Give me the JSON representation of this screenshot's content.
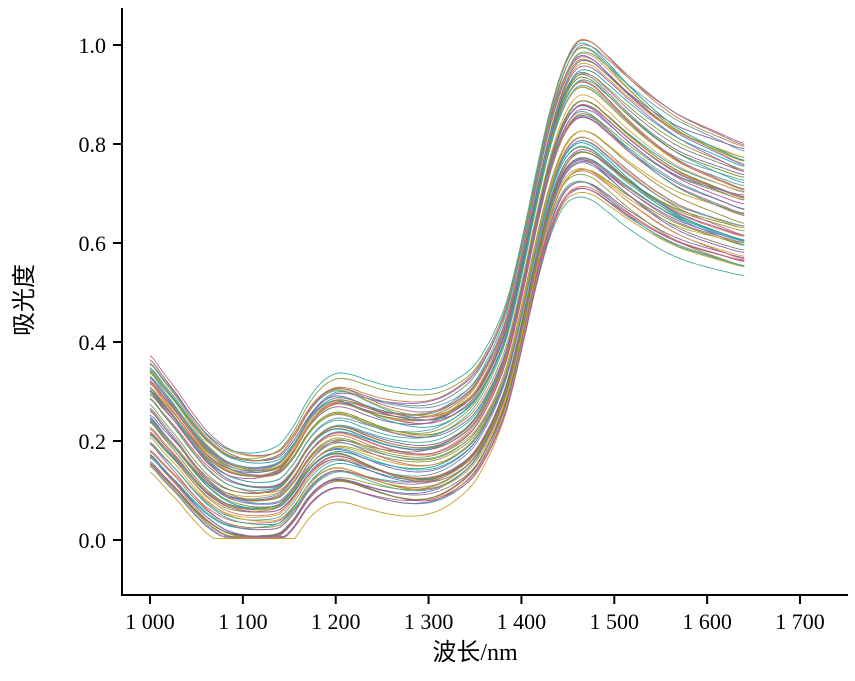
{
  "chart_data": {
    "type": "line",
    "title": "",
    "xlabel": "波长/nm",
    "ylabel": "吸光度",
    "grid": false,
    "legend": "none",
    "x_ticks": [
      1000,
      1100,
      1200,
      1300,
      1400,
      1500,
      1600,
      1700
    ],
    "x_tick_labels": [
      "1 000",
      "1 100",
      "1 200",
      "1 300",
      "1 400",
      "1 500",
      "1 600",
      "1 700"
    ],
    "y_ticks": [
      0.0,
      0.2,
      0.4,
      0.6,
      0.8,
      1.0
    ],
    "y_tick_labels": [
      "0.0",
      "0.2",
      "0.4",
      "0.6",
      "0.8",
      "1.0"
    ],
    "x_data_range_nm": [
      1000,
      1640
    ],
    "ylim_data": [
      0.0,
      1.005
    ],
    "n_series": 72,
    "description": "Bundle of near-infrared absorbance spectra; band minimum near 1080-1140 nm (0.0-0.19), local maximum near 1200 nm (0.10-0.32), shallow dip near 1280 nm, steep rise 1380-1440 nm, global peak near 1455-1465 nm (0.70-1.00), decaying to 0.53-0.79 at 1640 nm",
    "anchors_x": [
      1000,
      1015,
      1030,
      1045,
      1060,
      1080,
      1100,
      1120,
      1140,
      1155,
      1170,
      1185,
      1200,
      1215,
      1230,
      1250,
      1270,
      1290,
      1310,
      1330,
      1350,
      1370,
      1385,
      1400,
      1415,
      1430,
      1445,
      1460,
      1475,
      1490,
      1510,
      1530,
      1550,
      1570,
      1590,
      1610,
      1640
    ],
    "mean_y": [
      0.26,
      0.228,
      0.196,
      0.16,
      0.128,
      0.1,
      0.088,
      0.086,
      0.094,
      0.125,
      0.17,
      0.2,
      0.213,
      0.21,
      0.2,
      0.188,
      0.18,
      0.177,
      0.183,
      0.202,
      0.235,
      0.3,
      0.375,
      0.49,
      0.62,
      0.735,
      0.815,
      0.852,
      0.85,
      0.828,
      0.795,
      0.765,
      0.738,
      0.716,
      0.7,
      0.686,
      0.668
    ],
    "spread_y": [
      0.11,
      0.106,
      0.102,
      0.098,
      0.094,
      0.09,
      0.088,
      0.088,
      0.092,
      0.096,
      0.1,
      0.104,
      0.106,
      0.106,
      0.105,
      0.104,
      0.104,
      0.103,
      0.102,
      0.101,
      0.1,
      0.099,
      0.098,
      0.1,
      0.106,
      0.118,
      0.132,
      0.148,
      0.15,
      0.147,
      0.143,
      0.138,
      0.134,
      0.13,
      0.127,
      0.124,
      0.12
    ],
    "palette": [
      "#c8a227",
      "#4aa8a0",
      "#8064a2",
      "#c0648c",
      "#7f7f7f",
      "#8c9e3a",
      "#d27c4e",
      "#3aada0",
      "#b056a8",
      "#6b8e23",
      "#cd6a6a",
      "#20a0aa",
      "#9a8b3a",
      "#7b68c8",
      "#d8a050",
      "#5f9ea0"
    ],
    "axis_color": "#000000"
  }
}
